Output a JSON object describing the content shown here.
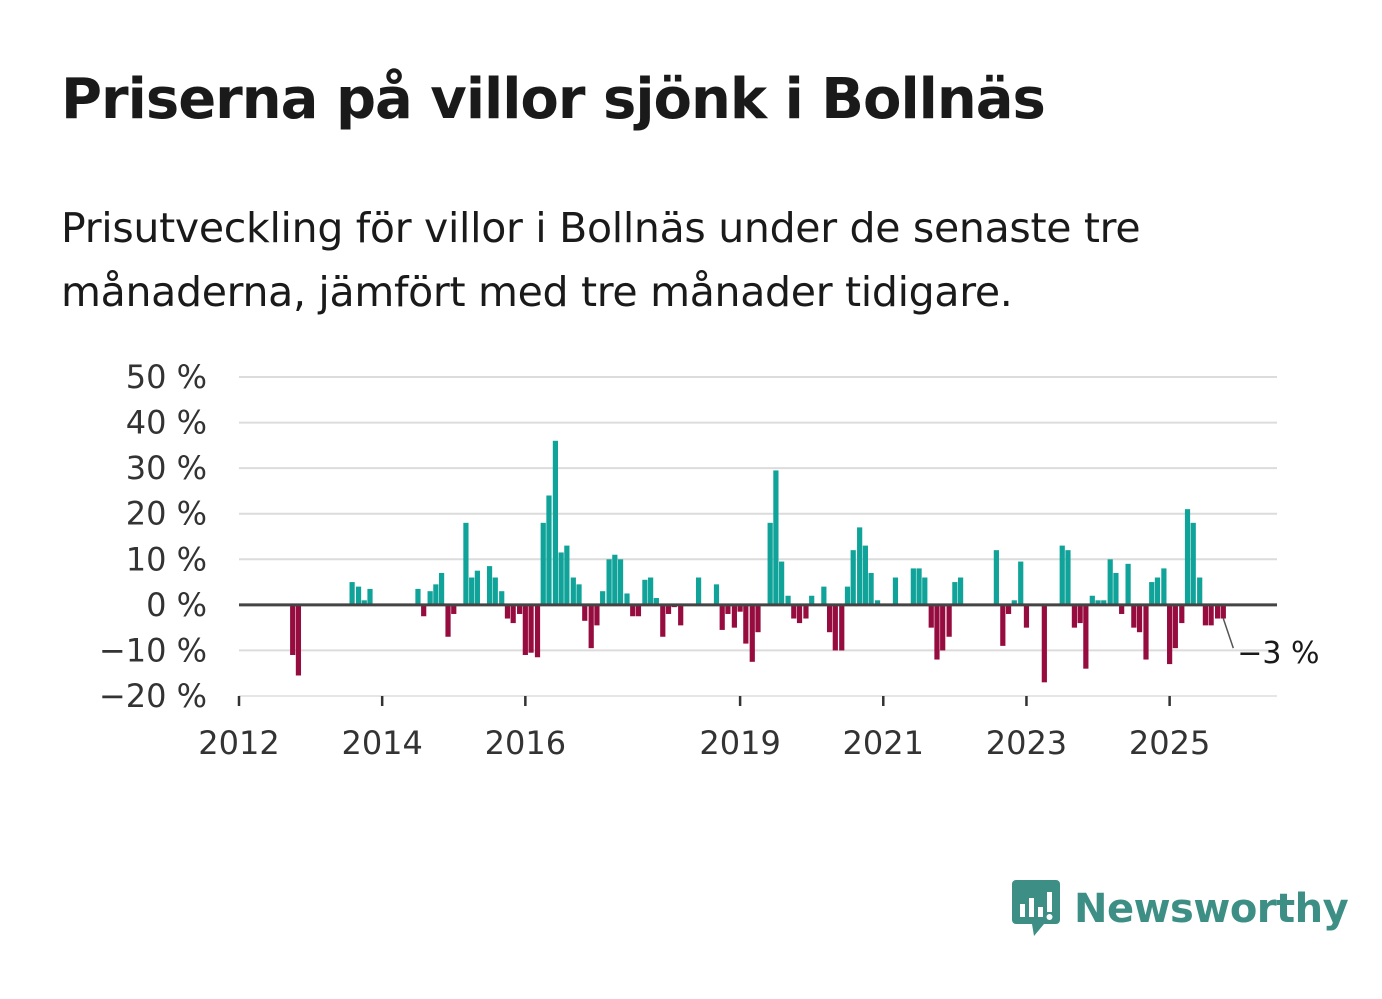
{
  "title": "Priserna på villor sjönk i Bollnäs",
  "subtitle": "Prisutveckling för villor i Bollnäs under de senaste tre månaderna, jämfört med tre månader tidigare.",
  "brand": {
    "name": "Newsworthy",
    "icon": "newsworthy-logo-icon",
    "color": "#3d8f86"
  },
  "colors": {
    "positive": "#0fa39a",
    "negative": "#960c3f",
    "zero_line": "#444444",
    "grid": "#dcdcdc"
  },
  "chart_data": {
    "type": "bar",
    "title": "Priserna på villor sjönk i Bollnäs",
    "xlabel": "",
    "ylabel": "",
    "ylim": [
      -20,
      50
    ],
    "y_ticks": [
      -20,
      -10,
      0,
      10,
      20,
      30,
      40,
      50
    ],
    "y_tick_labels": [
      "−20 %",
      "−10 %",
      "0 %",
      "10 %",
      "20 %",
      "30 %",
      "40 %",
      "50 %"
    ],
    "x_ticks": [
      2012,
      2014,
      2016,
      2019,
      2021,
      2023,
      2025
    ],
    "x_tick_labels": [
      "2012",
      "2014",
      "2016",
      "2019",
      "2021",
      "2023",
      "2025"
    ],
    "xlim": [
      2012.0,
      2026.5
    ],
    "grid": true,
    "annotation": {
      "text": "−3 %",
      "x": 2025.75,
      "y": -3
    },
    "series": [
      {
        "name": "Prisutveckling",
        "unit": "%",
        "x": [
          2012.75,
          2012.83,
          2013.58,
          2013.67,
          2013.75,
          2013.83,
          2014.5,
          2014.58,
          2014.67,
          2014.75,
          2014.83,
          2014.92,
          2015.0,
          2015.17,
          2015.25,
          2015.33,
          2015.5,
          2015.58,
          2015.67,
          2015.75,
          2015.83,
          2015.92,
          2016.0,
          2016.08,
          2016.17,
          2016.25,
          2016.33,
          2016.42,
          2016.5,
          2016.58,
          2016.67,
          2016.75,
          2016.83,
          2016.92,
          2017.0,
          2017.08,
          2017.17,
          2017.25,
          2017.33,
          2017.42,
          2017.5,
          2017.58,
          2017.67,
          2017.75,
          2017.83,
          2017.92,
          2018.0,
          2018.08,
          2018.17,
          2018.42,
          2018.67,
          2018.75,
          2018.83,
          2018.92,
          2019.0,
          2019.08,
          2019.17,
          2019.25,
          2019.42,
          2019.5,
          2019.58,
          2019.67,
          2019.75,
          2019.83,
          2019.92,
          2020.0,
          2020.17,
          2020.25,
          2020.33,
          2020.42,
          2020.5,
          2020.58,
          2020.67,
          2020.75,
          2020.83,
          2020.92,
          2021.17,
          2021.42,
          2021.5,
          2021.58,
          2021.67,
          2021.75,
          2021.83,
          2021.92,
          2022.0,
          2022.08,
          2022.58,
          2022.67,
          2022.75,
          2022.83,
          2022.92,
          2023.0,
          2023.25,
          2023.5,
          2023.58,
          2023.67,
          2023.75,
          2023.83,
          2023.92,
          2024.0,
          2024.08,
          2024.17,
          2024.25,
          2024.33,
          2024.42,
          2024.5,
          2024.58,
          2024.67,
          2024.75,
          2024.83,
          2024.92,
          2025.0,
          2025.08,
          2025.17,
          2025.25,
          2025.33,
          2025.42,
          2025.5,
          2025.58,
          2025.67,
          2025.75
        ],
        "values": [
          -11,
          -15.5,
          5,
          4,
          1,
          3.5,
          3.5,
          -2.5,
          3,
          4.5,
          7,
          -7,
          -2,
          18,
          6,
          7.5,
          8.5,
          6,
          3,
          -3,
          -4,
          -2,
          -11,
          -10.5,
          -11.5,
          18,
          24,
          36,
          11.5,
          13,
          6,
          4.5,
          -3.5,
          -9.5,
          -4.5,
          3,
          10,
          11,
          10,
          2.5,
          -2.5,
          -2.5,
          5.5,
          6,
          1.5,
          -7,
          -2,
          -0.5,
          -4.5,
          6,
          4.5,
          -5.5,
          -2,
          -5,
          -1.5,
          -8.5,
          -12.5,
          -6,
          18,
          29.5,
          9.5,
          2,
          -3,
          -4,
          -3,
          2,
          4,
          -6,
          -10,
          -10,
          4,
          12,
          17,
          13,
          7,
          1,
          6,
          8,
          8,
          6,
          -5,
          -12,
          -10,
          -7,
          5,
          6,
          12,
          -9,
          -2,
          1,
          9.5,
          -5,
          -17,
          13,
          12,
          -5,
          -4,
          -14,
          2,
          1,
          1,
          10,
          7,
          -2,
          9,
          -5,
          -6,
          -12,
          5,
          6,
          8,
          -13,
          -9.5,
          -4,
          21,
          18,
          6,
          -4.5,
          -4.5,
          -3,
          -3
        ]
      }
    ]
  }
}
